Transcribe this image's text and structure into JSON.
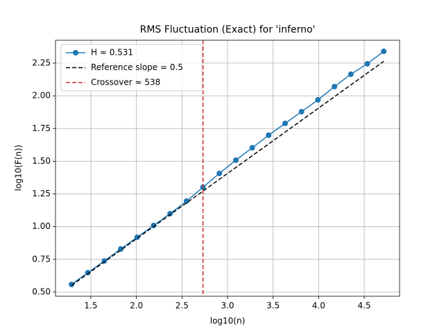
{
  "chart_data": {
    "type": "line",
    "title": "RMS Fluctuation (Exact) for 'inferno'",
    "xlabel": "log10(n)",
    "ylabel": "log10(F(n))",
    "xlim": [
      1.112,
      4.888
    ],
    "ylim": [
      0.468,
      2.425
    ],
    "xticks": [
      1.5,
      {
        "value": 2,
        "label": "2.0"
      },
      2.5,
      {
        "value": 3,
        "label": "3.0"
      },
      3.5,
      {
        "value": 4,
        "label": "4.0"
      },
      4.5
    ],
    "yticks": [
      {
        "value": 0.5,
        "label": "0.50"
      },
      0.75,
      {
        "value": 1,
        "label": "1.00"
      },
      1.25,
      {
        "value": 1.5,
        "label": "1.50"
      },
      1.75,
      {
        "value": 2,
        "label": "2.00"
      },
      2.25
    ],
    "grid": true,
    "legend": "upper left",
    "series": [
      {
        "name": "H ≈ 0.531",
        "color": "#1f77b4",
        "style": "solid",
        "marker": "circle",
        "x": [
          1.287,
          1.467,
          1.648,
          1.828,
          2.008,
          2.189,
          2.369,
          2.55,
          2.73,
          2.91,
          3.091,
          3.271,
          3.451,
          3.632,
          3.812,
          3.992,
          4.173,
          4.353,
          4.534,
          4.714
        ],
        "values": [
          0.558,
          0.648,
          0.738,
          0.829,
          0.919,
          1.009,
          1.099,
          1.195,
          1.301,
          1.407,
          1.508,
          1.603,
          1.699,
          1.789,
          1.879,
          1.969,
          2.07,
          2.165,
          2.245,
          2.34
        ]
      },
      {
        "name": "Reference slope = 0.5",
        "color": "#000000",
        "style": "dashed",
        "x": [
          1.287,
          4.714
        ],
        "values": [
          0.55,
          2.264
        ]
      },
      {
        "name": "Crossover ≈ 538",
        "color": "#d62728",
        "style": "dashed",
        "kind": "vline",
        "x": [
          2.731
        ]
      }
    ]
  }
}
